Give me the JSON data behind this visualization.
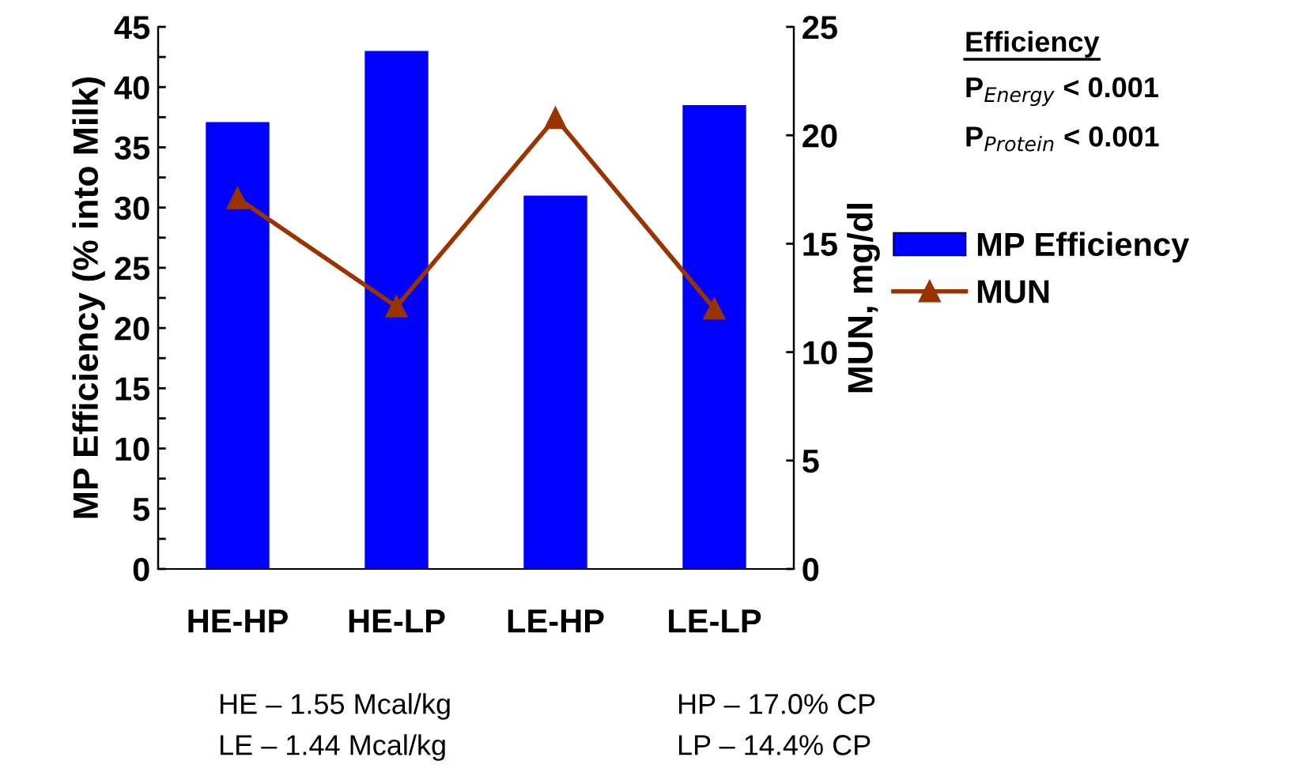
{
  "chart_data": {
    "type": "bar",
    "categories": [
      "HE-HP",
      "HE-LP",
      "LE-HP",
      "LE-LP"
    ],
    "ylabel": "MP Efficiency (% into Milk)",
    "y2label": "MUN, mg/dl",
    "series": [
      {
        "name": "MP Efficiency",
        "color": "#0000ff",
        "values": [
          37.1,
          43.0,
          31.0,
          38.5
        ]
      },
      {
        "name": "MUN",
        "type": "line",
        "axis": "y2",
        "color": "#993300",
        "marker": "triangle",
        "line_style": "solid",
        "values": [
          17.1,
          12.1,
          20.8,
          12.0
        ]
      }
    ],
    "ylim": [
      0,
      45
    ],
    "yticks": [
      0,
      {
        "value": 2.5,
        "label": null
      },
      5,
      {
        "value": 7.5,
        "label": null
      },
      10,
      {
        "value": 12.5,
        "label": null
      },
      15,
      {
        "value": 17.5,
        "label": null
      },
      20,
      {
        "value": 22.5,
        "label": null
      },
      25,
      {
        "value": 27.5,
        "label": null
      },
      30,
      {
        "value": 32.5,
        "label": null
      },
      35,
      {
        "value": 37.5,
        "label": null
      },
      40,
      {
        "value": 42.5,
        "label": null
      },
      45
    ],
    "y2lim": [
      0,
      25
    ],
    "y2ticks": [
      0,
      5,
      10,
      15,
      20,
      25
    ],
    "grid": false,
    "legend": "right",
    "annotations": [
      "Efficiency",
      "P$_{Energy}$ < 0.001",
      "P$_{Protein}$ < 0.001",
      "HE – 1.55 Mcal/kg",
      "LE – 1.44 Mcal/kg",
      "HP – 17.0% CP",
      "LP – 14.4% CP"
    ]
  }
}
